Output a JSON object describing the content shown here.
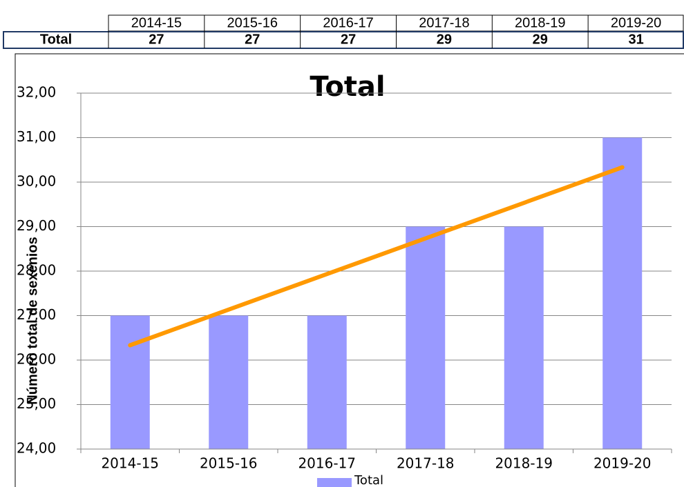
{
  "table": {
    "header": [
      "2014-15",
      "2015-16",
      "2016-17",
      "2017-18",
      "2018-19",
      "2019-20"
    ],
    "rows": [
      [
        "Total",
        27,
        27,
        27,
        29,
        29,
        31
      ]
    ]
  },
  "chart_data": {
    "type": "bar",
    "title": "Total",
    "y_label": "Número total de sexenios",
    "categories": [
      "2014-15",
      "2015-16",
      "2016-17",
      "2017-18",
      "2018-19",
      "2019-20"
    ],
    "series": [
      {
        "name": "Total",
        "color": "#9999ff",
        "values": [
          27,
          27,
          27,
          29,
          29,
          31
        ]
      }
    ],
    "ylim": [
      24,
      32
    ],
    "yticks": [
      {
        "value": 24,
        "label": "24,00"
      },
      {
        "value": 25,
        "label": "25,00"
      },
      {
        "value": 26,
        "label": "26,00"
      },
      {
        "value": 27,
        "label": "27,00"
      },
      {
        "value": 28,
        "label": "28,00"
      },
      {
        "value": 29,
        "label": "29,00"
      },
      {
        "value": 30,
        "label": "30,00"
      },
      {
        "value": 31,
        "label": "31,00"
      },
      {
        "value": 32,
        "label": "32,00"
      }
    ],
    "grid": true,
    "trendline": {
      "type": "linear",
      "color": "#ff9900"
    },
    "legend": "bottom"
  }
}
